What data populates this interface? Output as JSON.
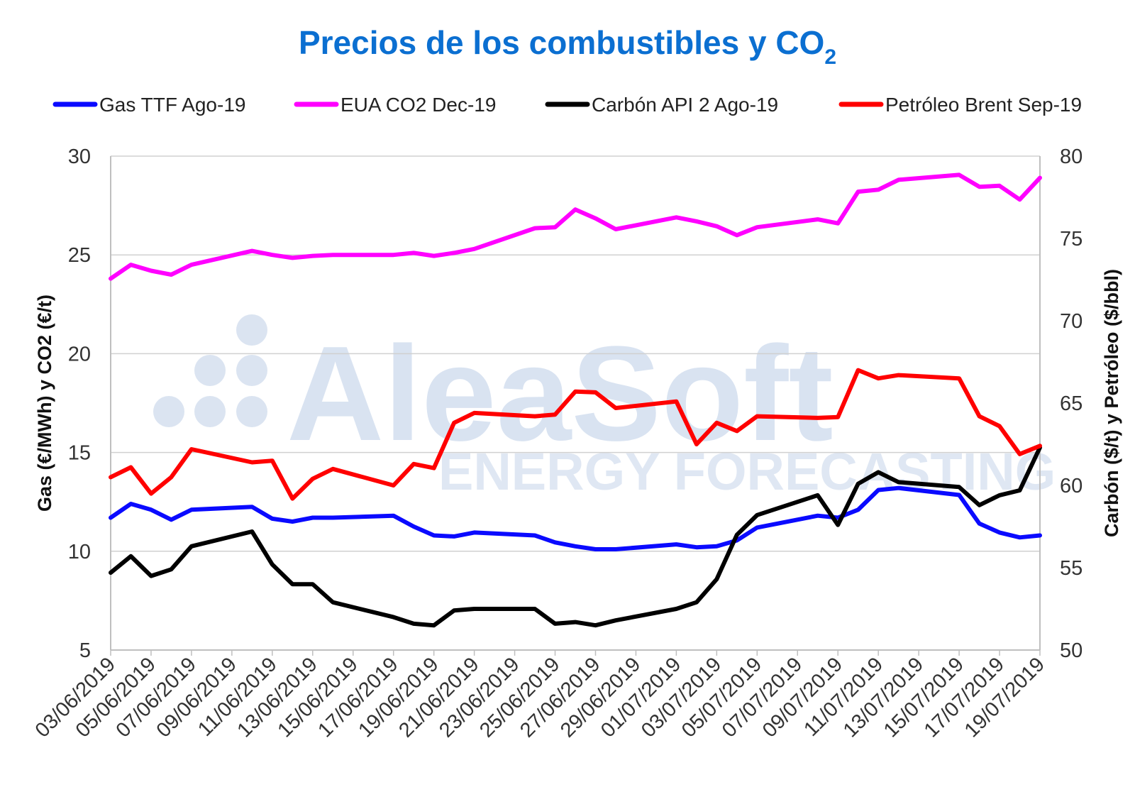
{
  "chart_data": {
    "type": "line",
    "title": "Precios de los combustibles y CO",
    "title_subscript": "2",
    "ylabel_left": "Gas (€/MWh) y CO2 (€/t)",
    "ylabel_right": "Carbón ($/t) y Petróleo ($/bbl)",
    "ylim_left": [
      5,
      30
    ],
    "ylim_right": [
      50,
      80
    ],
    "yticks_left": [
      "5",
      "10",
      "15",
      "20",
      "25",
      "30"
    ],
    "yticks_right": [
      "50",
      "55",
      "60",
      "65",
      "70",
      "75",
      "80"
    ],
    "gridlines": true,
    "legend_position": "top",
    "watermark": {
      "main": "AleaSoft",
      "sub": "ENERGY FORECASTING"
    },
    "xticks": [
      "03/06/2019",
      "05/06/2019",
      "07/06/2019",
      "09/06/2019",
      "11/06/2019",
      "13/06/2019",
      "15/06/2019",
      "17/06/2019",
      "19/06/2019",
      "21/06/2019",
      "23/06/2019",
      "25/06/2019",
      "27/06/2019",
      "29/06/2019",
      "01/07/2019",
      "03/07/2019",
      "05/07/2019",
      "07/07/2019",
      "09/07/2019",
      "11/07/2019",
      "13/07/2019",
      "15/07/2019",
      "17/07/2019",
      "19/07/2019"
    ],
    "series": [
      {
        "name": "Gas TTF Ago-19",
        "axis": "left",
        "color": "#0a0aff",
        "points": [
          [
            0,
            11.7
          ],
          [
            1,
            12.4
          ],
          [
            2,
            12.1
          ],
          [
            3,
            11.6
          ],
          [
            4,
            12.1
          ],
          [
            7,
            12.25
          ],
          [
            8,
            11.65
          ],
          [
            9,
            11.5
          ],
          [
            10,
            11.7
          ],
          [
            11,
            11.7
          ],
          [
            14,
            11.8
          ],
          [
            15,
            11.25
          ],
          [
            16,
            10.8
          ],
          [
            17,
            10.75
          ],
          [
            18,
            10.95
          ],
          [
            21,
            10.8
          ],
          [
            22,
            10.45
          ],
          [
            23,
            10.25
          ],
          [
            24,
            10.1
          ],
          [
            25,
            10.1
          ],
          [
            28,
            10.35
          ],
          [
            29,
            10.2
          ],
          [
            30,
            10.25
          ],
          [
            31,
            10.55
          ],
          [
            32,
            11.2
          ],
          [
            35,
            11.8
          ],
          [
            36,
            11.7
          ],
          [
            37,
            12.1
          ],
          [
            38,
            13.1
          ],
          [
            39,
            13.2
          ],
          [
            42,
            12.85
          ],
          [
            43,
            11.4
          ],
          [
            44,
            10.95
          ],
          [
            45,
            10.7
          ],
          [
            46,
            10.8
          ]
        ]
      },
      {
        "name": "EUA CO2 Dec-19",
        "axis": "left",
        "color": "#ff00ff",
        "points": [
          [
            0,
            23.8
          ],
          [
            1,
            24.5
          ],
          [
            2,
            24.2
          ],
          [
            3,
            24.0
          ],
          [
            4,
            24.5
          ],
          [
            7,
            25.2
          ],
          [
            8,
            25.0
          ],
          [
            9,
            24.85
          ],
          [
            10,
            24.95
          ],
          [
            11,
            25.0
          ],
          [
            14,
            25.0
          ],
          [
            15,
            25.1
          ],
          [
            16,
            24.95
          ],
          [
            17,
            25.1
          ],
          [
            18,
            25.3
          ],
          [
            21,
            26.35
          ],
          [
            22,
            26.4
          ],
          [
            23,
            27.3
          ],
          [
            24,
            26.85
          ],
          [
            25,
            26.3
          ],
          [
            28,
            26.9
          ],
          [
            29,
            26.7
          ],
          [
            30,
            26.45
          ],
          [
            31,
            26.0
          ],
          [
            32,
            26.4
          ],
          [
            35,
            26.8
          ],
          [
            36,
            26.6
          ],
          [
            37,
            28.2
          ],
          [
            38,
            28.3
          ],
          [
            39,
            28.8
          ],
          [
            42,
            29.05
          ],
          [
            43,
            28.45
          ],
          [
            44,
            28.5
          ],
          [
            45,
            27.8
          ],
          [
            46,
            28.9
          ]
        ]
      },
      {
        "name": "Carbón API 2 Ago-19",
        "axis": "right",
        "color": "#000000",
        "points": [
          [
            0,
            54.7
          ],
          [
            1,
            55.7
          ],
          [
            2,
            54.5
          ],
          [
            3,
            54.9
          ],
          [
            4,
            56.3
          ],
          [
            7,
            57.2
          ],
          [
            8,
            55.2
          ],
          [
            9,
            54.0
          ],
          [
            10,
            54.0
          ],
          [
            11,
            52.9
          ],
          [
            14,
            52.0
          ],
          [
            15,
            51.6
          ],
          [
            16,
            51.5
          ],
          [
            17,
            52.4
          ],
          [
            18,
            52.5
          ],
          [
            21,
            52.5
          ],
          [
            22,
            51.6
          ],
          [
            23,
            51.7
          ],
          [
            24,
            51.5
          ],
          [
            25,
            51.8
          ],
          [
            28,
            52.5
          ],
          [
            29,
            52.9
          ],
          [
            30,
            54.3
          ],
          [
            31,
            57.0
          ],
          [
            32,
            58.2
          ],
          [
            35,
            59.4
          ],
          [
            36,
            57.6
          ],
          [
            37,
            60.1
          ],
          [
            38,
            60.8
          ],
          [
            39,
            60.2
          ],
          [
            42,
            59.9
          ],
          [
            43,
            58.8
          ],
          [
            44,
            59.4
          ],
          [
            45,
            59.7
          ],
          [
            46,
            62.3
          ]
        ]
      },
      {
        "name": "Petróleo Brent Sep-19",
        "axis": "right",
        "color": "#ff0000",
        "points": [
          [
            0,
            60.5
          ],
          [
            1,
            61.1
          ],
          [
            2,
            59.5
          ],
          [
            3,
            60.5
          ],
          [
            4,
            62.2
          ],
          [
            7,
            61.4
          ],
          [
            8,
            61.5
          ],
          [
            9,
            59.2
          ],
          [
            10,
            60.4
          ],
          [
            11,
            61.0
          ],
          [
            14,
            60.0
          ],
          [
            15,
            61.3
          ],
          [
            16,
            61.05
          ],
          [
            17,
            63.8
          ],
          [
            18,
            64.4
          ],
          [
            21,
            64.2
          ],
          [
            22,
            64.3
          ],
          [
            23,
            65.7
          ],
          [
            24,
            65.65
          ],
          [
            25,
            64.7
          ],
          [
            28,
            65.1
          ],
          [
            29,
            62.5
          ],
          [
            30,
            63.8
          ],
          [
            31,
            63.3
          ],
          [
            32,
            64.2
          ],
          [
            35,
            64.1
          ],
          [
            36,
            64.15
          ],
          [
            37,
            67.0
          ],
          [
            38,
            66.5
          ],
          [
            39,
            66.7
          ],
          [
            42,
            66.5
          ],
          [
            43,
            64.2
          ],
          [
            44,
            63.6
          ],
          [
            45,
            61.9
          ],
          [
            46,
            62.4
          ]
        ]
      }
    ]
  }
}
